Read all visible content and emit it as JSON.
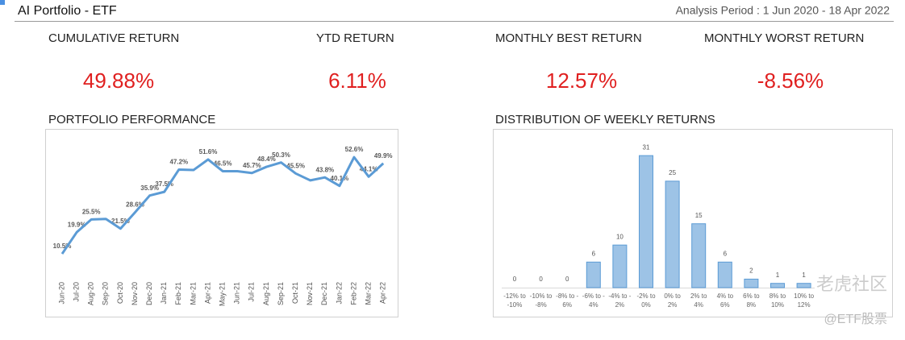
{
  "header": {
    "title": "AI Portfolio - ETF",
    "period": "Analysis Period : 1 Jun 2020 - 18 Apr 2022"
  },
  "stats": [
    {
      "label": "CUMULATIVE RETURN",
      "value": "49.88%"
    },
    {
      "label": "YTD RETURN",
      "value": "6.11%"
    },
    {
      "label": "MONTHLY BEST RETURN",
      "value": "12.57%"
    },
    {
      "label": "MONTHLY WORST RETURN",
      "value": "-8.56%"
    }
  ],
  "chart_data": [
    {
      "type": "line",
      "title": "PORTFOLIO PERFORMANCE",
      "color": "#5b9bd5",
      "categories": [
        "Jun-20",
        "Jul-20",
        "Aug-20",
        "Sep-20",
        "Oct-20",
        "Nov-20",
        "Dec-20",
        "Jan-21",
        "Feb-21",
        "Mar-21",
        "Apr-21",
        "May-21",
        "Jun-21",
        "Jul-21",
        "Aug-21",
        "Sep-21",
        "Oct-21",
        "Nov-21",
        "Dec-21",
        "Jan-22",
        "Feb-22",
        "Mar-22",
        "Apr-22"
      ],
      "values": [
        10.5,
        19.9,
        25.5,
        25.7,
        21.5,
        28.6,
        35.9,
        37.5,
        47.2,
        47.0,
        51.6,
        46.5,
        46.5,
        45.7,
        48.4,
        50.3,
        45.5,
        42.5,
        43.8,
        40.1,
        52.6,
        44.1,
        49.9
      ],
      "value_labels": [
        "10.5%",
        "19.9%",
        "25.5%",
        null,
        "21.5%",
        "28.6%",
        "35.9%",
        "37.5%",
        "47.2%",
        null,
        "51.6%",
        "46.5%",
        null,
        "45.7%",
        "48.4%",
        "50.3%",
        "45.5%",
        null,
        "43.8%",
        "40.1%",
        "52.6%",
        "44.1%",
        "49.9%"
      ],
      "ylim": [
        0,
        60
      ]
    },
    {
      "type": "bar",
      "title": "DISTRIBUTION OF WEEKLY RETURNS",
      "color": "#9dc3e6",
      "edge_color": "#5b9bd5",
      "categories": [
        "-12% to -10%",
        "-10% to -8%",
        "-8% to - 6%",
        "-6% to - 4%",
        "-4% to - 2%",
        "-2% to 0%",
        "0% to 2%",
        "2% to 4%",
        "4% to 6%",
        "6% to 8%",
        "8% to 10%",
        "10% to 12%"
      ],
      "values": [
        0,
        0,
        0,
        6,
        10,
        31,
        25,
        15,
        6,
        2,
        1,
        1
      ],
      "ylim": [
        0,
        35
      ]
    }
  ],
  "watermark": [
    "老虎社区",
    "@ETF股票"
  ]
}
